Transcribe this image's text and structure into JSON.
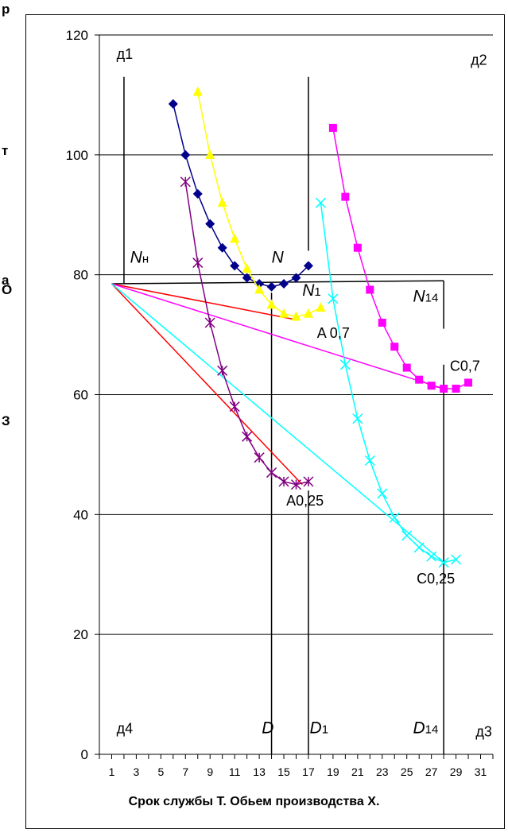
{
  "chart_data": {
    "type": "line",
    "xlabel": "Срок службы Т. Обьем производства Х.",
    "ylabel_letters": [
      "р",
      "т",
      "а",
      "О",
      "З"
    ],
    "xlim": [
      0,
      32
    ],
    "ylim": [
      0,
      120
    ],
    "xticks": [
      1,
      3,
      5,
      7,
      9,
      11,
      13,
      15,
      17,
      19,
      21,
      23,
      25,
      27,
      29,
      31
    ],
    "yticks": [
      0,
      20,
      40,
      60,
      80,
      100,
      120
    ],
    "grid": "horizontal",
    "colors": {
      "blue": "#00008b",
      "yellow": "#ffff00",
      "purple": "#800080",
      "magenta": "#ff00ff",
      "cyan": "#00ffff",
      "red": "#ff0000"
    },
    "series": [
      {
        "color_key": "blue",
        "marker": "diamond",
        "x": [
          6,
          7,
          8,
          9,
          10,
          11,
          12,
          13,
          14,
          15,
          16,
          17
        ],
        "y": [
          108.5,
          100,
          93.5,
          88.5,
          84.5,
          81.5,
          79.5,
          78.5,
          78,
          78.5,
          79.5,
          81.5
        ]
      },
      {
        "color_key": "yellow",
        "marker": "triangle",
        "x": [
          8,
          9,
          10,
          11,
          12,
          13,
          14,
          15,
          16,
          17,
          18
        ],
        "y": [
          110.5,
          100,
          92,
          86,
          81,
          77.5,
          75,
          73.5,
          73,
          73.5,
          74.5
        ]
      },
      {
        "color_key": "purple",
        "marker": "star",
        "x": [
          7,
          8,
          9,
          10,
          11,
          12,
          13,
          14,
          15,
          16,
          17
        ],
        "y": [
          95.5,
          82,
          72,
          64,
          58,
          53,
          49.5,
          47,
          45.5,
          45,
          45.5
        ]
      },
      {
        "color_key": "magenta",
        "marker": "square",
        "x": [
          19,
          20,
          21,
          22,
          23,
          24,
          25,
          26,
          27,
          28,
          29,
          30
        ],
        "y": [
          104.5,
          93,
          84.5,
          77.5,
          72,
          68,
          64.5,
          62.5,
          61.5,
          61,
          61,
          62
        ]
      },
      {
        "color_key": "cyan",
        "marker": "x",
        "x": [
          18,
          19,
          20,
          21,
          22,
          23,
          24,
          25,
          26,
          27,
          28,
          29
        ],
        "y": [
          92,
          76,
          65,
          56,
          49,
          43.5,
          39.5,
          36.5,
          34.5,
          33,
          32,
          32.5
        ]
      }
    ],
    "rays": [
      {
        "color_key": "red",
        "from": [
          1,
          78.5
        ],
        "to": [
          16,
          72.5
        ]
      },
      {
        "color_key": "red",
        "from": [
          1,
          78.5
        ],
        "to": [
          16.5,
          45
        ]
      },
      {
        "color_key": "magenta",
        "from": [
          1,
          78.5
        ],
        "to": [
          28,
          61
        ]
      },
      {
        "color_key": "cyan",
        "from": [
          1,
          78.5
        ],
        "to": [
          28,
          32
        ]
      }
    ],
    "black_lines": [
      {
        "from": [
          1,
          78.5
        ],
        "to": [
          28,
          79
        ]
      },
      {
        "from": [
          2,
          113
        ],
        "to": [
          2,
          78.5
        ]
      },
      {
        "from": [
          28,
          79
        ],
        "to": [
          28,
          71
        ]
      },
      {
        "from": [
          17,
          113
        ],
        "to": [
          17,
          84
        ]
      },
      {
        "from": [
          17,
          44
        ],
        "to": [
          17,
          0
        ]
      },
      {
        "from": [
          14,
          77
        ],
        "to": [
          14,
          0
        ]
      },
      {
        "from": [
          28,
          65
        ],
        "to": [
          28,
          0
        ]
      }
    ],
    "annotations": [
      {
        "text": "д1",
        "x": 1.4,
        "y": 116
      },
      {
        "text": "д2",
        "x": 30.2,
        "y": 115
      },
      {
        "text": "д4",
        "x": 1.4,
        "y": 3.5
      },
      {
        "text": "д3",
        "x": 30.6,
        "y": 3
      },
      {
        "text": "Nн",
        "x": 2.5,
        "y": 82,
        "italic_letter": true
      },
      {
        "text": "N",
        "x": 14,
        "y": 82,
        "italic_letter": true
      },
      {
        "text": "N1",
        "x": 16.5,
        "y": 76.5,
        "italic_letter": true
      },
      {
        "text": "N14",
        "x": 25.5,
        "y": 75.5,
        "italic_letter": true
      },
      {
        "text": "A 0,7",
        "x": 17.7,
        "y": 69.5
      },
      {
        "text": "A0,25",
        "x": 15.2,
        "y": 41.5
      },
      {
        "text": "C0,7",
        "x": 28.5,
        "y": 64
      },
      {
        "text": "C0,25",
        "x": 25.8,
        "y": 28.5
      },
      {
        "text": "D",
        "x": 13.2,
        "y": 3.5,
        "italic_letter": true
      },
      {
        "text": "D1",
        "x": 17.1,
        "y": 3.5,
        "italic_letter": true
      },
      {
        "text": "D14",
        "x": 25.5,
        "y": 3.5,
        "italic_letter": true
      }
    ]
  }
}
